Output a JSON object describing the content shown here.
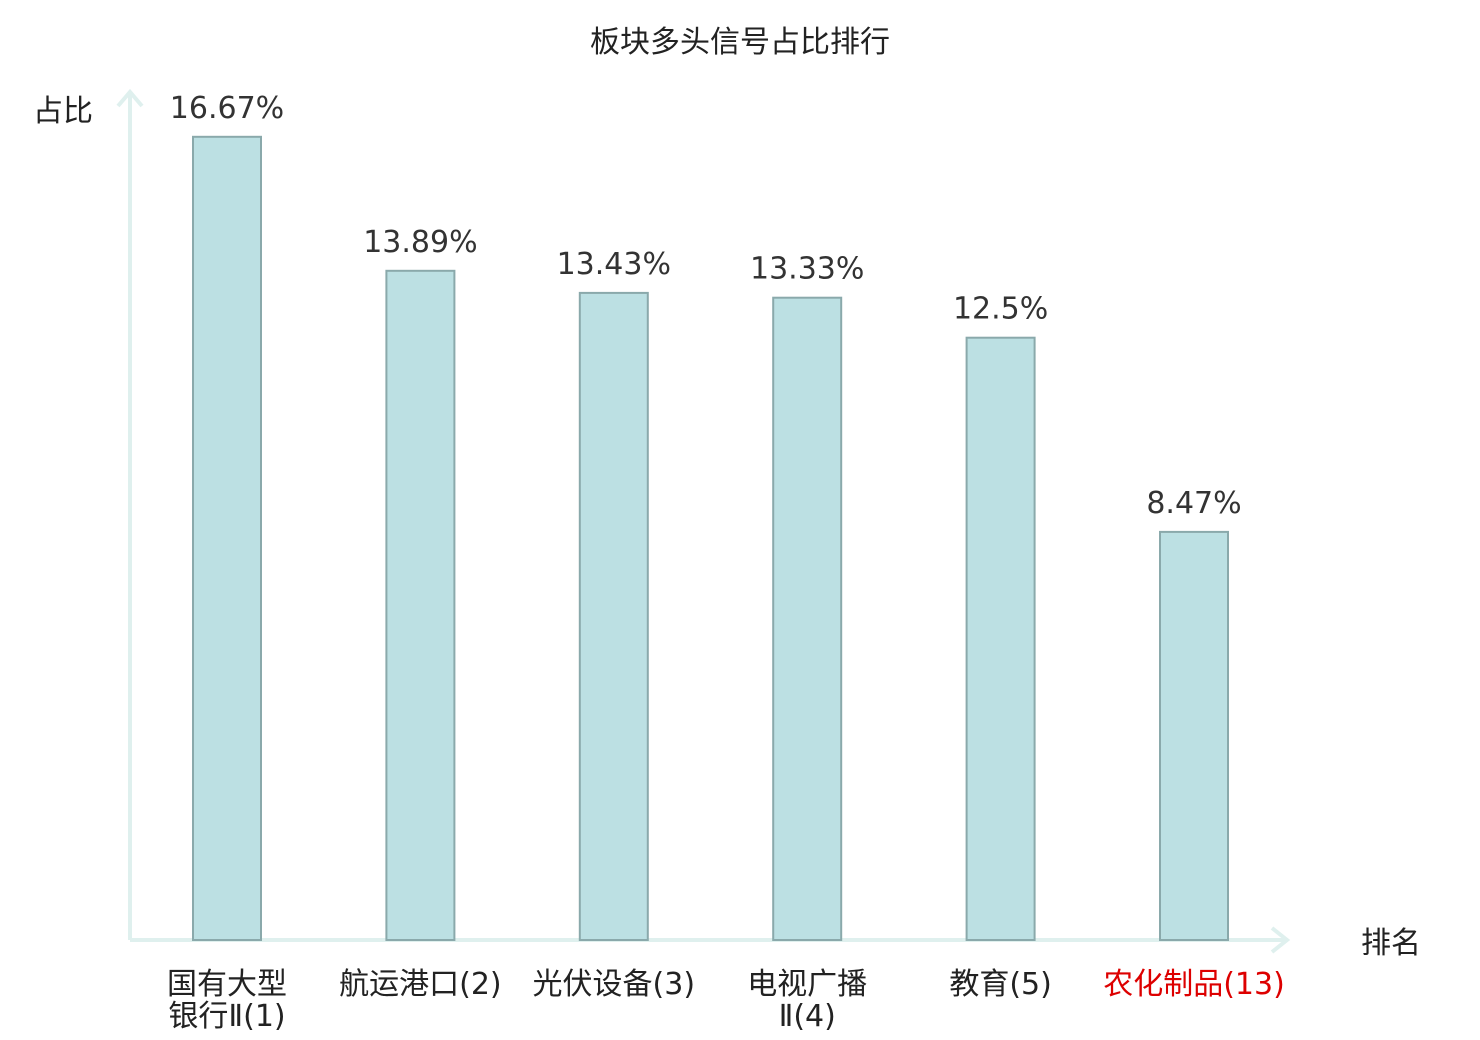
{
  "chart_data": {
    "type": "bar",
    "title": "板块多头信号占比排行",
    "ylabel": "占比",
    "xlabel": "排名",
    "ylim": [
      0,
      17.6
    ],
    "grid": false,
    "legend": "none",
    "categories": [
      {
        "lines": [
          "国有大型",
          "银行Ⅱ(1)"
        ],
        "highlight": false
      },
      {
        "lines": [
          "航运港口(2)"
        ],
        "highlight": false
      },
      {
        "lines": [
          "光伏设备(3)"
        ],
        "highlight": false
      },
      {
        "lines": [
          "电视广播",
          "Ⅱ(4)"
        ],
        "highlight": false
      },
      {
        "lines": [
          "教育(5)"
        ],
        "highlight": false
      },
      {
        "lines": [
          "农化制品(13)"
        ],
        "highlight": true
      }
    ],
    "values": [
      16.67,
      13.89,
      13.43,
      13.33,
      12.5,
      8.47
    ],
    "value_labels": [
      "16.67%",
      "13.89%",
      "13.43%",
      "13.33%",
      "12.5%",
      "8.47%"
    ],
    "colors": {
      "bar_fill": "#bce0e3",
      "bar_stroke": "#8aa9ab",
      "axis": "#dff0ee",
      "highlight_label": "#dd0000",
      "normal_label": "#222222"
    }
  }
}
